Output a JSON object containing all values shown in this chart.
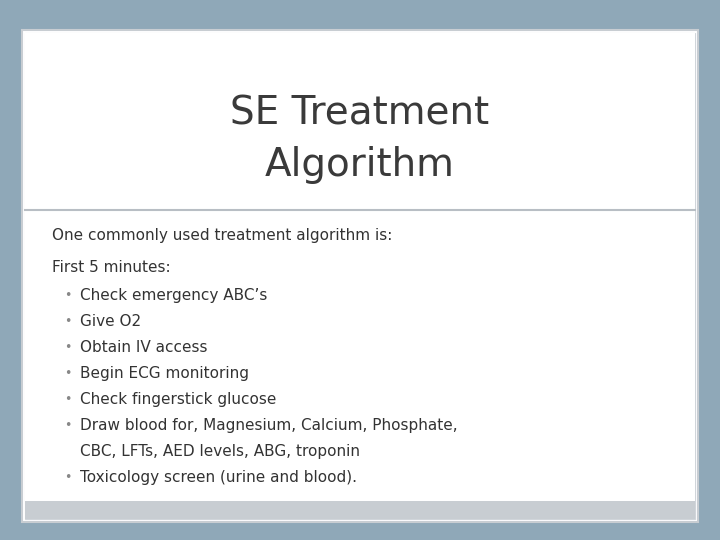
{
  "title_line1": "SE Treatment",
  "title_line2": "Algorithm",
  "subtitle": "One commonly used treatment algorithm is:",
  "section_header": "First 5 minutes:",
  "bullets": [
    "Check emergency ABC’s",
    "Give O2",
    "Obtain IV access",
    "Begin ECG monitoring",
    "Check fingerstick glucose",
    "Draw blood for, Magnesium, Calcium, Phosphate,",
    "CBC, LFTs, AED levels, ABG, troponin",
    "Toxicology screen (urine and blood)."
  ],
  "bullet_has_continuation": [
    false,
    false,
    false,
    false,
    false,
    true,
    false,
    false
  ],
  "bg_color": "#8fa8b8",
  "outer_border_color": "#c8cdd2",
  "inner_border_color": "#d0d5da",
  "title_bg": "#ffffff",
  "body_bg": "#ffffff",
  "separator_color": "#b8bec4",
  "bottom_strip_color": "#c8cdd2",
  "title_color": "#3a3a3a",
  "body_color": "#333333",
  "bullet_color": "#888888",
  "title_fontsize": 28,
  "subtitle_fontsize": 11,
  "body_fontsize": 11,
  "header_fontsize": 11
}
